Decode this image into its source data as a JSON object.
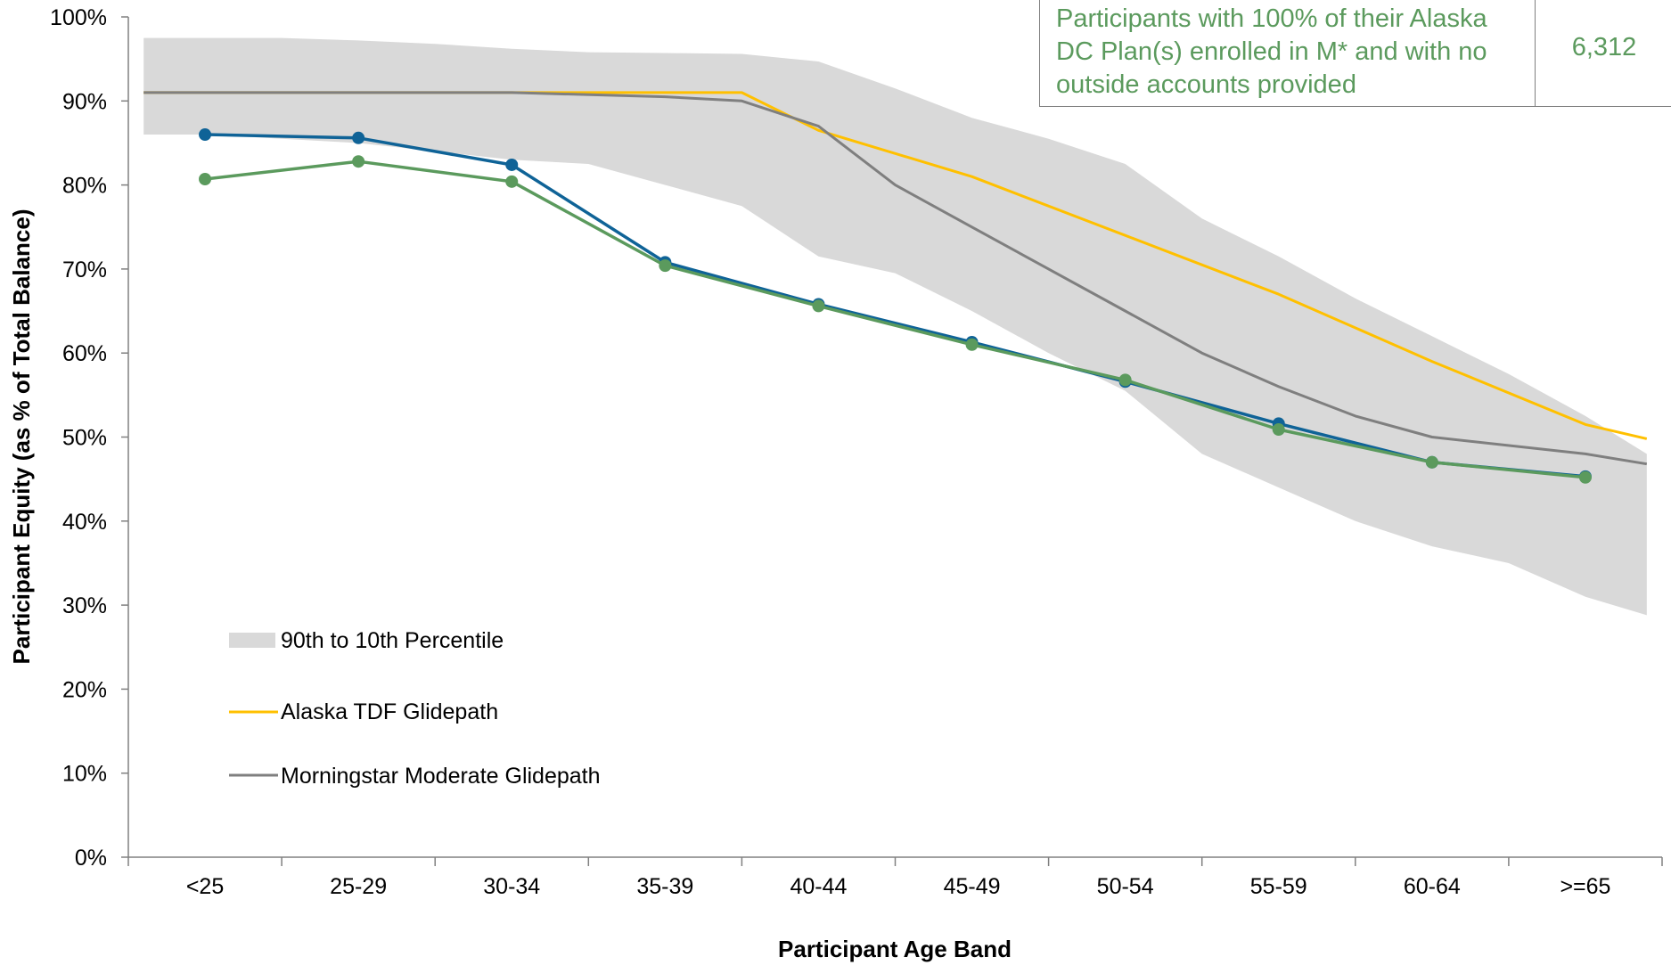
{
  "chart_data": {
    "type": "line",
    "title": "",
    "xlabel": "Participant Age Band",
    "ylabel": "Participant Equity (as % of Total Balance)",
    "categories": [
      "<25",
      "25-29",
      "30-34",
      "35-39",
      "40-44",
      "45-49",
      "50-54",
      "55-59",
      "60-64",
      ">=65"
    ],
    "ylim": [
      0,
      100
    ],
    "y_ticks": [
      "0%",
      "10%",
      "20%",
      "30%",
      "40%",
      "50%",
      "60%",
      "70%",
      "80%",
      "90%",
      "100%"
    ],
    "grid": false,
    "legend_position": "bottom-left",
    "band": {
      "name": "90th to 10th Percentile",
      "color": "#d9d9d9",
      "x": [
        -0.4,
        -0.2,
        0,
        0.5,
        1,
        1.5,
        2,
        2.5,
        3,
        3.5,
        4,
        4.5,
        5,
        5.5,
        6,
        6.5,
        7,
        7.5,
        8,
        8.5,
        9,
        9.4
      ],
      "upper": [
        97.5,
        97.5,
        97.5,
        97.5,
        97.2,
        96.8,
        96.2,
        95.8,
        95.7,
        95.6,
        94.7,
        91.5,
        88.0,
        85.5,
        82.5,
        76.0,
        71.5,
        66.5,
        62.0,
        57.5,
        52.5,
        48.0
      ],
      "lower": [
        86.0,
        86.0,
        86.0,
        85.5,
        85.0,
        84.0,
        83.0,
        82.5,
        80.0,
        77.5,
        71.5,
        69.5,
        65.0,
        60.0,
        55.5,
        48.0,
        44.0,
        40.0,
        37.0,
        35.0,
        31.0,
        28.8
      ]
    },
    "reference_lines": [
      {
        "name": "Alaska TDF Glidepath",
        "color": "#ffc000",
        "x": [
          -0.4,
          0,
          1,
          2,
          3,
          3.5,
          4,
          5,
          6,
          7,
          8,
          9,
          9.4
        ],
        "values": [
          91.0,
          91.0,
          91.0,
          91.0,
          91.0,
          91.0,
          86.5,
          81.0,
          74.0,
          67.0,
          59.0,
          51.5,
          49.8
        ]
      },
      {
        "name": "Morningstar Moderate Glidepath",
        "color": "#7f7f7f",
        "x": [
          -0.4,
          0,
          1,
          2,
          3,
          3.5,
          4,
          4.5,
          5,
          6,
          6.5,
          7,
          7.5,
          8,
          9,
          9.4
        ],
        "values": [
          91.0,
          91.0,
          91.0,
          91.0,
          90.5,
          90.0,
          87.0,
          80.0,
          75.0,
          65.0,
          60.0,
          56.0,
          52.5,
          50.0,
          48.0,
          46.8
        ]
      }
    ],
    "series": [
      {
        "name": "",
        "color": "#0f6397",
        "values": [
          86.0,
          85.6,
          82.4,
          70.8,
          65.8,
          61.3,
          56.6,
          51.6,
          47.0,
          45.3
        ]
      },
      {
        "name": "",
        "color": "#5b9a5d",
        "values": [
          80.7,
          82.8,
          80.4,
          70.4,
          65.6,
          61.0,
          56.8,
          50.9,
          47.0,
          45.2
        ]
      }
    ]
  },
  "info_box": {
    "label": "Participants with 100% of their Alaska DC Plan(s) enrolled in M* and with no outside accounts provided",
    "value": "6,312"
  }
}
